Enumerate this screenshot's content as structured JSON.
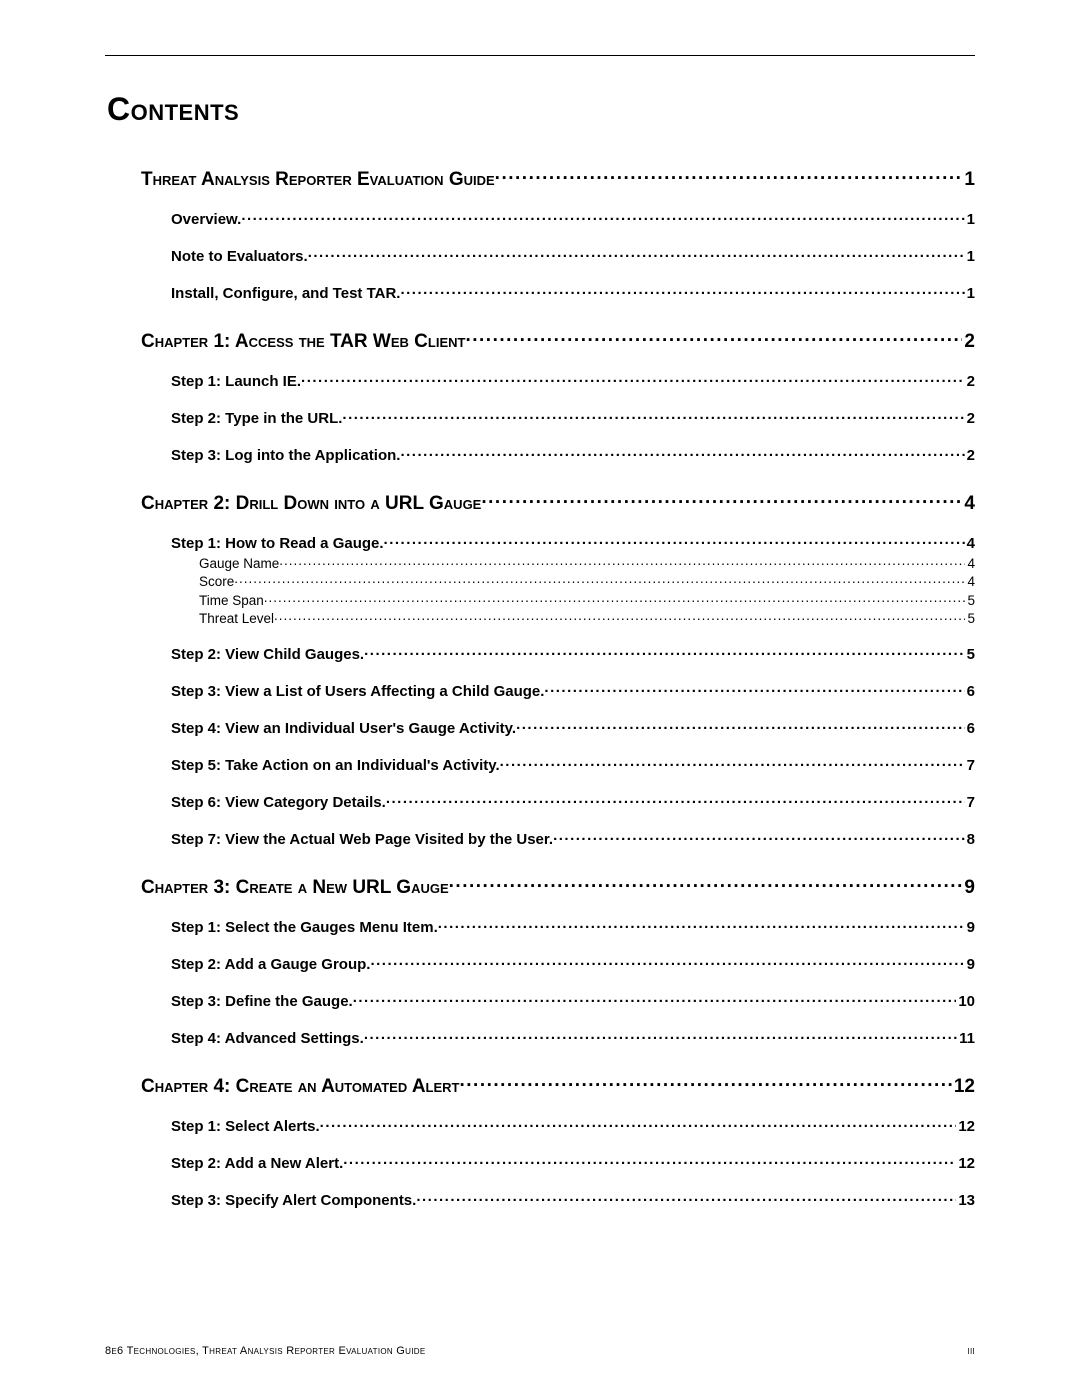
{
  "title": "Contents",
  "footer": {
    "left": "8e6 Technologies, Threat Analysis Reporter Evaluation Guide",
    "right": "iii"
  },
  "toc": [
    {
      "level": 1,
      "label": "Threat Analysis Reporter Evaluation Guide ",
      "page": "1"
    },
    {
      "level": 2,
      "label": "Overview. ",
      "page": " 1"
    },
    {
      "level": 2,
      "label": "Note to Evaluators. ",
      "page": " 1"
    },
    {
      "level": 2,
      "label": "Install, Configure, and Test TAR. ",
      "page": " 1"
    },
    {
      "level": 1,
      "label": "Chapter 1: Access the TAR Web Client ",
      "page": "2"
    },
    {
      "level": 2,
      "label": "Step 1: Launch IE. ",
      "page": " 2"
    },
    {
      "level": 2,
      "label": "Step 2: Type in the URL. ",
      "page": " 2"
    },
    {
      "level": 2,
      "label": "Step 3: Log into the Application. ",
      "page": " 2"
    },
    {
      "level": 1,
      "label": "Chapter 2: Drill Down into a URL Gauge  ",
      "page": "4"
    },
    {
      "level": 2,
      "label": "Step 1: How to Read a Gauge. ",
      "page": " 4"
    },
    {
      "level": 3,
      "label": "Gauge Name ",
      "page": "4"
    },
    {
      "level": 3,
      "label": "Score ",
      "page": "4"
    },
    {
      "level": 3,
      "label": "Time Span ",
      "page": "5"
    },
    {
      "level": 3,
      "label": "Threat Level ",
      "page": "5"
    },
    {
      "level": 2,
      "label": "Step 2: View Child Gauges. ",
      "page": " 5"
    },
    {
      "level": 2,
      "label": "Step 3: View a List of Users Affecting a Child Gauge. ",
      "page": " 6"
    },
    {
      "level": 2,
      "label": "Step 4: View an Individual User's Gauge Activity. ",
      "page": " 6"
    },
    {
      "level": 2,
      "label": "Step 5: Take Action on an Individual's Activity. ",
      "page": " 7"
    },
    {
      "level": 2,
      "label": "Step 6: View Category Details. ",
      "page": " 7"
    },
    {
      "level": 2,
      "label": "Step 7: View the Actual Web Page Visited by the User. ",
      "page": " 8"
    },
    {
      "level": 1,
      "label": "Chapter 3: Create a New URL Gauge  ",
      "page": "9"
    },
    {
      "level": 2,
      "label": "Step 1: Select the Gauges Menu Item. ",
      "page": " 9"
    },
    {
      "level": 2,
      "label": "Step 2: Add a Gauge Group. ",
      "page": " 9"
    },
    {
      "level": 2,
      "label": "Step 3: Define the Gauge. ",
      "page": " 10"
    },
    {
      "level": 2,
      "label": "Step 4: Advanced Settings. ",
      "page": " 11"
    },
    {
      "level": 1,
      "label": "Chapter 4: Create an Automated Alert  ",
      "page": "12"
    },
    {
      "level": 2,
      "label": "Step 1: Select Alerts. ",
      "page": " 12"
    },
    {
      "level": 2,
      "label": "Step 2: Add a New Alert. ",
      "page": " 12"
    },
    {
      "level": 2,
      "label": "Step 3: Specify Alert Components. ",
      "page": " 13"
    }
  ]
}
